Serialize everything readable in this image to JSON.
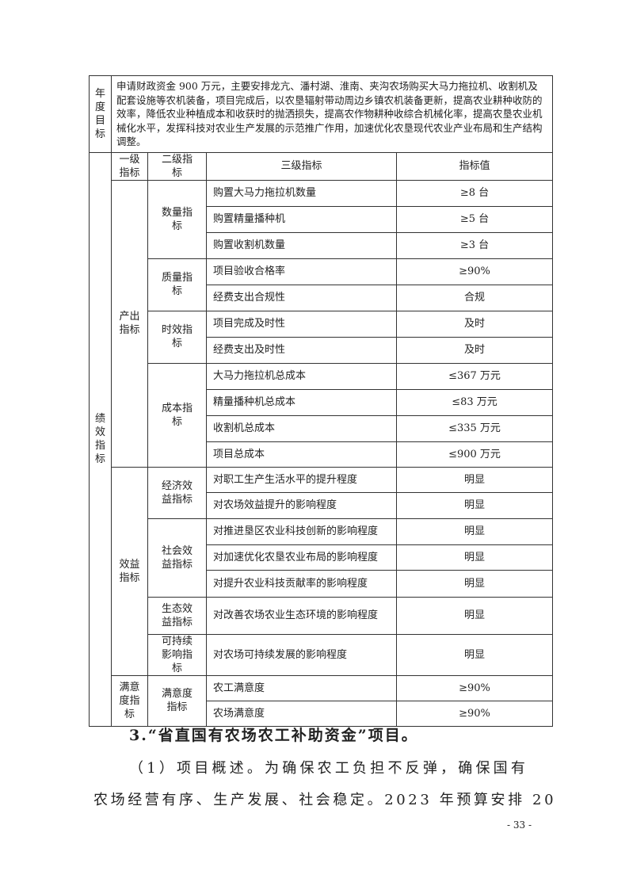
{
  "goal": {
    "label": "年度目标",
    "text": "申请财政资金 900 万元，主要安排龙亢、潘村湖、淮南、夹沟农场购买大马力拖拉机、收割机及配套设施等农机装备，项目完成后，以农垦辐射带动周边乡镇农机装备更新，提高农业耕种收防的效率，降低农业种植成本和收获时的抛洒损失，提高农作物耕种收综合机械化率，提高农垦农业机械化水平，发挥科技对农业生产发展的示范推广作用，加速优化农垦现代农业产业布局和生产结构调整。"
  },
  "performance": {
    "label": "绩效指标",
    "headers": [
      "一级指标",
      "二级指标",
      "三级指标",
      "指标值"
    ],
    "level1": [
      {
        "name": "产出指标",
        "groups": [
          {
            "name": "数量指标",
            "items": [
              {
                "name": "购置大马力拖拉机数量",
                "value": "≥8 台"
              },
              {
                "name": "购置精量播种机",
                "value": "≥5 台"
              },
              {
                "name": "购置收割机数量",
                "value": "≥3 台"
              }
            ]
          },
          {
            "name": "质量指标",
            "items": [
              {
                "name": "项目验收合格率",
                "value": "≥90%"
              },
              {
                "name": "经费支出合规性",
                "value": "合规"
              }
            ]
          },
          {
            "name": "时效指标",
            "items": [
              {
                "name": "项目完成及时性",
                "value": "及时"
              },
              {
                "name": "经费支出及时性",
                "value": "及时"
              }
            ]
          },
          {
            "name": "成本指标",
            "items": [
              {
                "name": "大马力拖拉机总成本",
                "value": "≤367 万元"
              },
              {
                "name": "精量播种机总成本",
                "value": "≤83 万元"
              },
              {
                "name": "收割机总成本",
                "value": "≤335 万元"
              },
              {
                "name": "项目总成本",
                "value": "≤900 万元"
              }
            ]
          }
        ]
      },
      {
        "name": "效益指标",
        "groups": [
          {
            "name": "经济效益指标",
            "items": [
              {
                "name": "对职工生产生活水平的提升程度",
                "value": "明显"
              },
              {
                "name": "对农场效益提升的影响程度",
                "value": "明显"
              }
            ]
          },
          {
            "name": "社会效益指标",
            "items": [
              {
                "name": "对推进垦区农业科技创新的影响程度",
                "value": "明显"
              },
              {
                "name": "对加速优化农垦农业布局的影响程度",
                "value": "明显"
              },
              {
                "name": "对提升农业科技贡献率的影响程度",
                "value": "明显"
              }
            ]
          },
          {
            "name": "生态效益指标",
            "items": [
              {
                "name": "对改善农场农业生态环境的影响程度",
                "value": "明显"
              }
            ]
          },
          {
            "name": "可持续影响指标",
            "items": [
              {
                "name": "对农场可持续发展的影响程度",
                "value": "明显"
              }
            ]
          }
        ]
      },
      {
        "name": "满意度指标",
        "groups": [
          {
            "name": "满意度指标",
            "items": [
              {
                "name": "农工满意度",
                "value": "≥90%"
              },
              {
                "name": "农场满意度",
                "value": "≥90%"
              }
            ]
          }
        ]
      }
    ]
  },
  "section": {
    "title": "3.“省直国有农场农工补助资金”项目。",
    "line1": "（1）项目概述。为确保农工负担不反弹，确保国有",
    "line2": "农场经营有序、生产发展、社会稳定。2023 年预算安排 20"
  },
  "page_number": "- 33 -"
}
